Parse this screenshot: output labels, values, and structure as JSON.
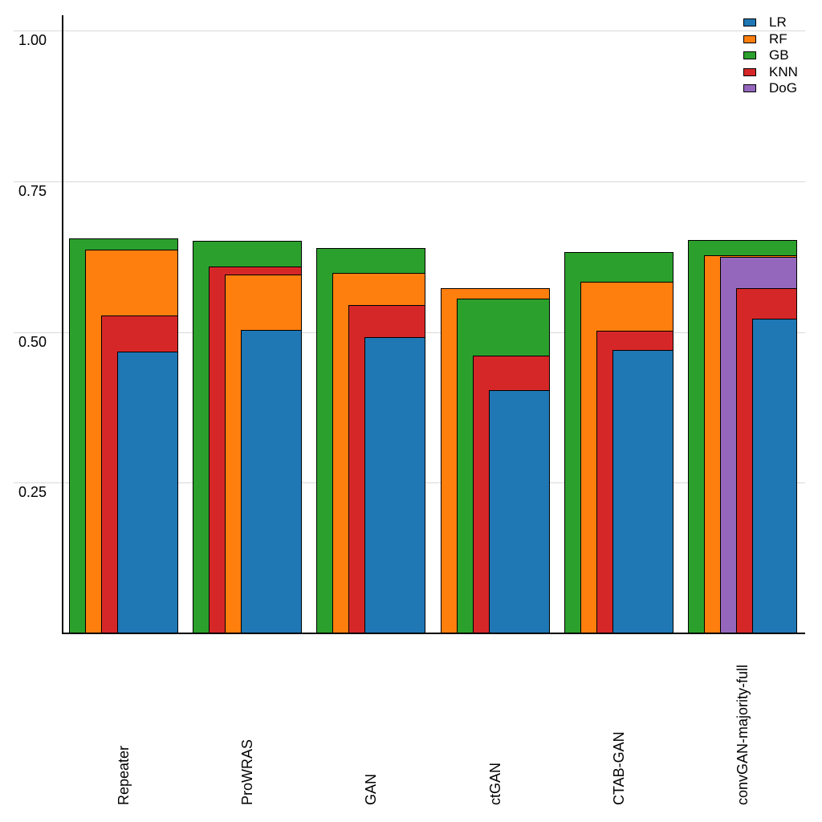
{
  "chart": {
    "background_color": "#ffffff",
    "axis_color": "#000000",
    "grid_color": "#d9d9d9",
    "bar_border_color": "#000000",
    "y_ticks": [
      "1.00",
      "0.75",
      "0.50",
      "0.25"
    ],
    "y_tick_values": [
      1.0,
      0.75,
      0.5,
      0.25
    ]
  },
  "chart_data": {
    "type": "bar",
    "variant": "layered-overlapping-bars",
    "title": "",
    "xlabel": "",
    "ylabel": "",
    "ylim": [
      0,
      1.05
    ],
    "grid": true,
    "legend_position": "top-right",
    "categories": [
      "Repeater",
      "ProWRAS",
      "GAN",
      "ctGAN",
      "CTAB-GAN",
      "convGAN-majority-full"
    ],
    "series": [
      {
        "name": "LR",
        "color": "#1f77b4",
        "values": [
          0.468,
          0.503,
          0.492,
          0.403,
          0.47,
          0.522
        ]
      },
      {
        "name": "RF",
        "color": "#ff7f0e",
        "values": [
          0.637,
          0.595,
          0.598,
          0.572,
          0.583,
          0.627
        ]
      },
      {
        "name": "GB",
        "color": "#2ca02c",
        "values": [
          0.655,
          0.651,
          0.639,
          0.555,
          0.632,
          0.652
        ]
      },
      {
        "name": "KNN",
        "color": "#d62728",
        "values": [
          0.527,
          0.609,
          0.545,
          0.461,
          0.502,
          0.572
        ]
      },
      {
        "name": "DoG",
        "color": "#9467bd",
        "values": [
          null,
          null,
          null,
          null,
          null,
          0.624
        ]
      }
    ],
    "legend_labels": [
      "LR",
      "RF",
      "GB",
      "KNN",
      "DoG"
    ]
  }
}
